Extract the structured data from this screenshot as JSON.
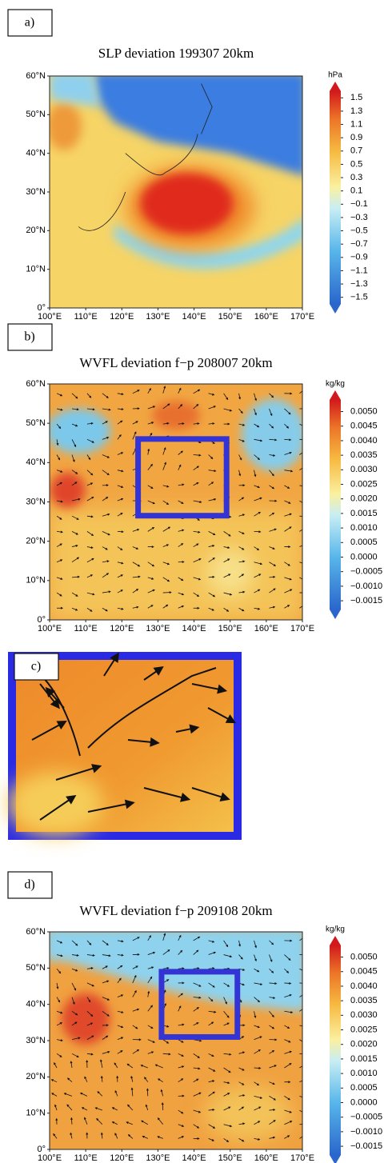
{
  "panels": [
    {
      "label": "a)",
      "title": "SLP deviation 199307 20km",
      "latlim": [
        0,
        60
      ],
      "lonlim": [
        100,
        170
      ],
      "lat_ticks": [
        {
          "value": 60,
          "label": "60°N"
        },
        {
          "value": 50,
          "label": "50°N"
        },
        {
          "value": 40,
          "label": "40°N"
        },
        {
          "value": 30,
          "label": "30°N"
        },
        {
          "value": 20,
          "label": "20°N"
        },
        {
          "value": 10,
          "label": "10°N"
        },
        {
          "value": 0,
          "label": "0°"
        }
      ],
      "lon_ticks": [
        {
          "value": 100,
          "label": "100°E"
        },
        {
          "value": 110,
          "label": "110°E"
        },
        {
          "value": 120,
          "label": "120°E"
        },
        {
          "value": 130,
          "label": "130°E"
        },
        {
          "value": 140,
          "label": "140°E"
        },
        {
          "value": 150,
          "label": "150°E"
        },
        {
          "value": 160,
          "label": "160°E"
        },
        {
          "value": 170,
          "label": "170°E"
        }
      ],
      "colorbar": {
        "unit": "hPa",
        "clim": [
          -1.6,
          1.6
        ],
        "ticks": [
          1.5,
          1.3,
          1.1,
          0.9,
          0.7,
          0.5,
          0.3,
          0.1,
          {
            "value": -0.1,
            "label": "−0.1"
          },
          {
            "value": -0.3,
            "label": "−0.3"
          },
          {
            "value": -0.5,
            "label": "−0.5"
          },
          {
            "value": -0.7,
            "label": "−0.7"
          },
          {
            "value": -0.9,
            "label": "−0.9"
          },
          {
            "value": -1.1,
            "label": "−1.1"
          },
          {
            "value": -1.3,
            "label": "−1.3"
          },
          {
            "value": -1.5,
            "label": "−1.5"
          }
        ]
      }
    },
    {
      "label": "b)",
      "title": "WVFL deviation f−p 208007 20km",
      "latlim": [
        0,
        60
      ],
      "lonlim": [
        100,
        170
      ],
      "lat_ticks": [
        {
          "value": 60,
          "label": "60°N"
        },
        {
          "value": 50,
          "label": "50°N"
        },
        {
          "value": 40,
          "label": "40°N"
        },
        {
          "value": 30,
          "label": "30°N"
        },
        {
          "value": 20,
          "label": "20°N"
        },
        {
          "value": 10,
          "label": "10°N"
        },
        {
          "value": 0,
          "label": "0°"
        }
      ],
      "lon_ticks": [
        {
          "value": 100,
          "label": "100°E"
        },
        {
          "value": 110,
          "label": "110°E"
        },
        {
          "value": 120,
          "label": "120°E"
        },
        {
          "value": 130,
          "label": "130°E"
        },
        {
          "value": 140,
          "label": "140°E"
        },
        {
          "value": 150,
          "label": "150°E"
        },
        {
          "value": 160,
          "label": "160°E"
        },
        {
          "value": 170,
          "label": "170°E"
        }
      ],
      "colorbar": {
        "unit": "kg/kg",
        "clim": [
          -0.0018,
          0.0054
        ],
        "ticks": [
          {
            "value": 0.005,
            "label": "0.0050"
          },
          0.0045,
          {
            "value": 0.004,
            "label": "0.0040"
          },
          0.0035,
          {
            "value": 0.003,
            "label": "0.0030"
          },
          0.0025,
          {
            "value": 0.002,
            "label": "0.0020"
          },
          0.0015,
          {
            "value": 0.001,
            "label": "0.0010"
          },
          0.0005,
          {
            "value": 0,
            "label": "0.0000"
          },
          {
            "value": -0.0005,
            "label": "−0.0005"
          },
          {
            "value": -0.001,
            "label": "−0.0010"
          },
          {
            "value": -0.0015,
            "label": "−0.0015"
          }
        ]
      }
    },
    {
      "label": "c)"
    },
    {
      "label": "d)",
      "title": "WVFL deviation f−p 209108 20km",
      "latlim": [
        0,
        60
      ],
      "lonlim": [
        100,
        170
      ],
      "lat_ticks": [
        {
          "value": 60,
          "label": "60°N"
        },
        {
          "value": 50,
          "label": "50°N"
        },
        {
          "value": 40,
          "label": "40°N"
        },
        {
          "value": 30,
          "label": "30°N"
        },
        {
          "value": 20,
          "label": "20°N"
        },
        {
          "value": 10,
          "label": "10°N"
        },
        {
          "value": 0,
          "label": "0°"
        }
      ],
      "lon_ticks": [
        {
          "value": 100,
          "label": "100°E"
        },
        {
          "value": 110,
          "label": "110°E"
        },
        {
          "value": 120,
          "label": "120°E"
        },
        {
          "value": 130,
          "label": "130°E"
        },
        {
          "value": 140,
          "label": "140°E"
        },
        {
          "value": 150,
          "label": "150°E"
        },
        {
          "value": 160,
          "label": "160°E"
        },
        {
          "value": 170,
          "label": "170°E"
        }
      ],
      "colorbar": {
        "unit": "kg/kg",
        "clim": [
          -0.0018,
          0.0054
        ],
        "ticks": [
          {
            "value": 0.005,
            "label": "0.0050"
          },
          0.0045,
          {
            "value": 0.004,
            "label": "0.0040"
          },
          0.0035,
          {
            "value": 0.003,
            "label": "0.0030"
          },
          0.0025,
          {
            "value": 0.002,
            "label": "0.0020"
          },
          0.0015,
          {
            "value": 0.001,
            "label": "0.0010"
          },
          0.0005,
          {
            "value": 0,
            "label": "0.0000"
          },
          {
            "value": -0.0005,
            "label": "−0.0005"
          },
          {
            "value": -0.001,
            "label": "−0.0010"
          },
          {
            "value": -0.0015,
            "label": "−0.0015"
          }
        ]
      }
    }
  ]
}
